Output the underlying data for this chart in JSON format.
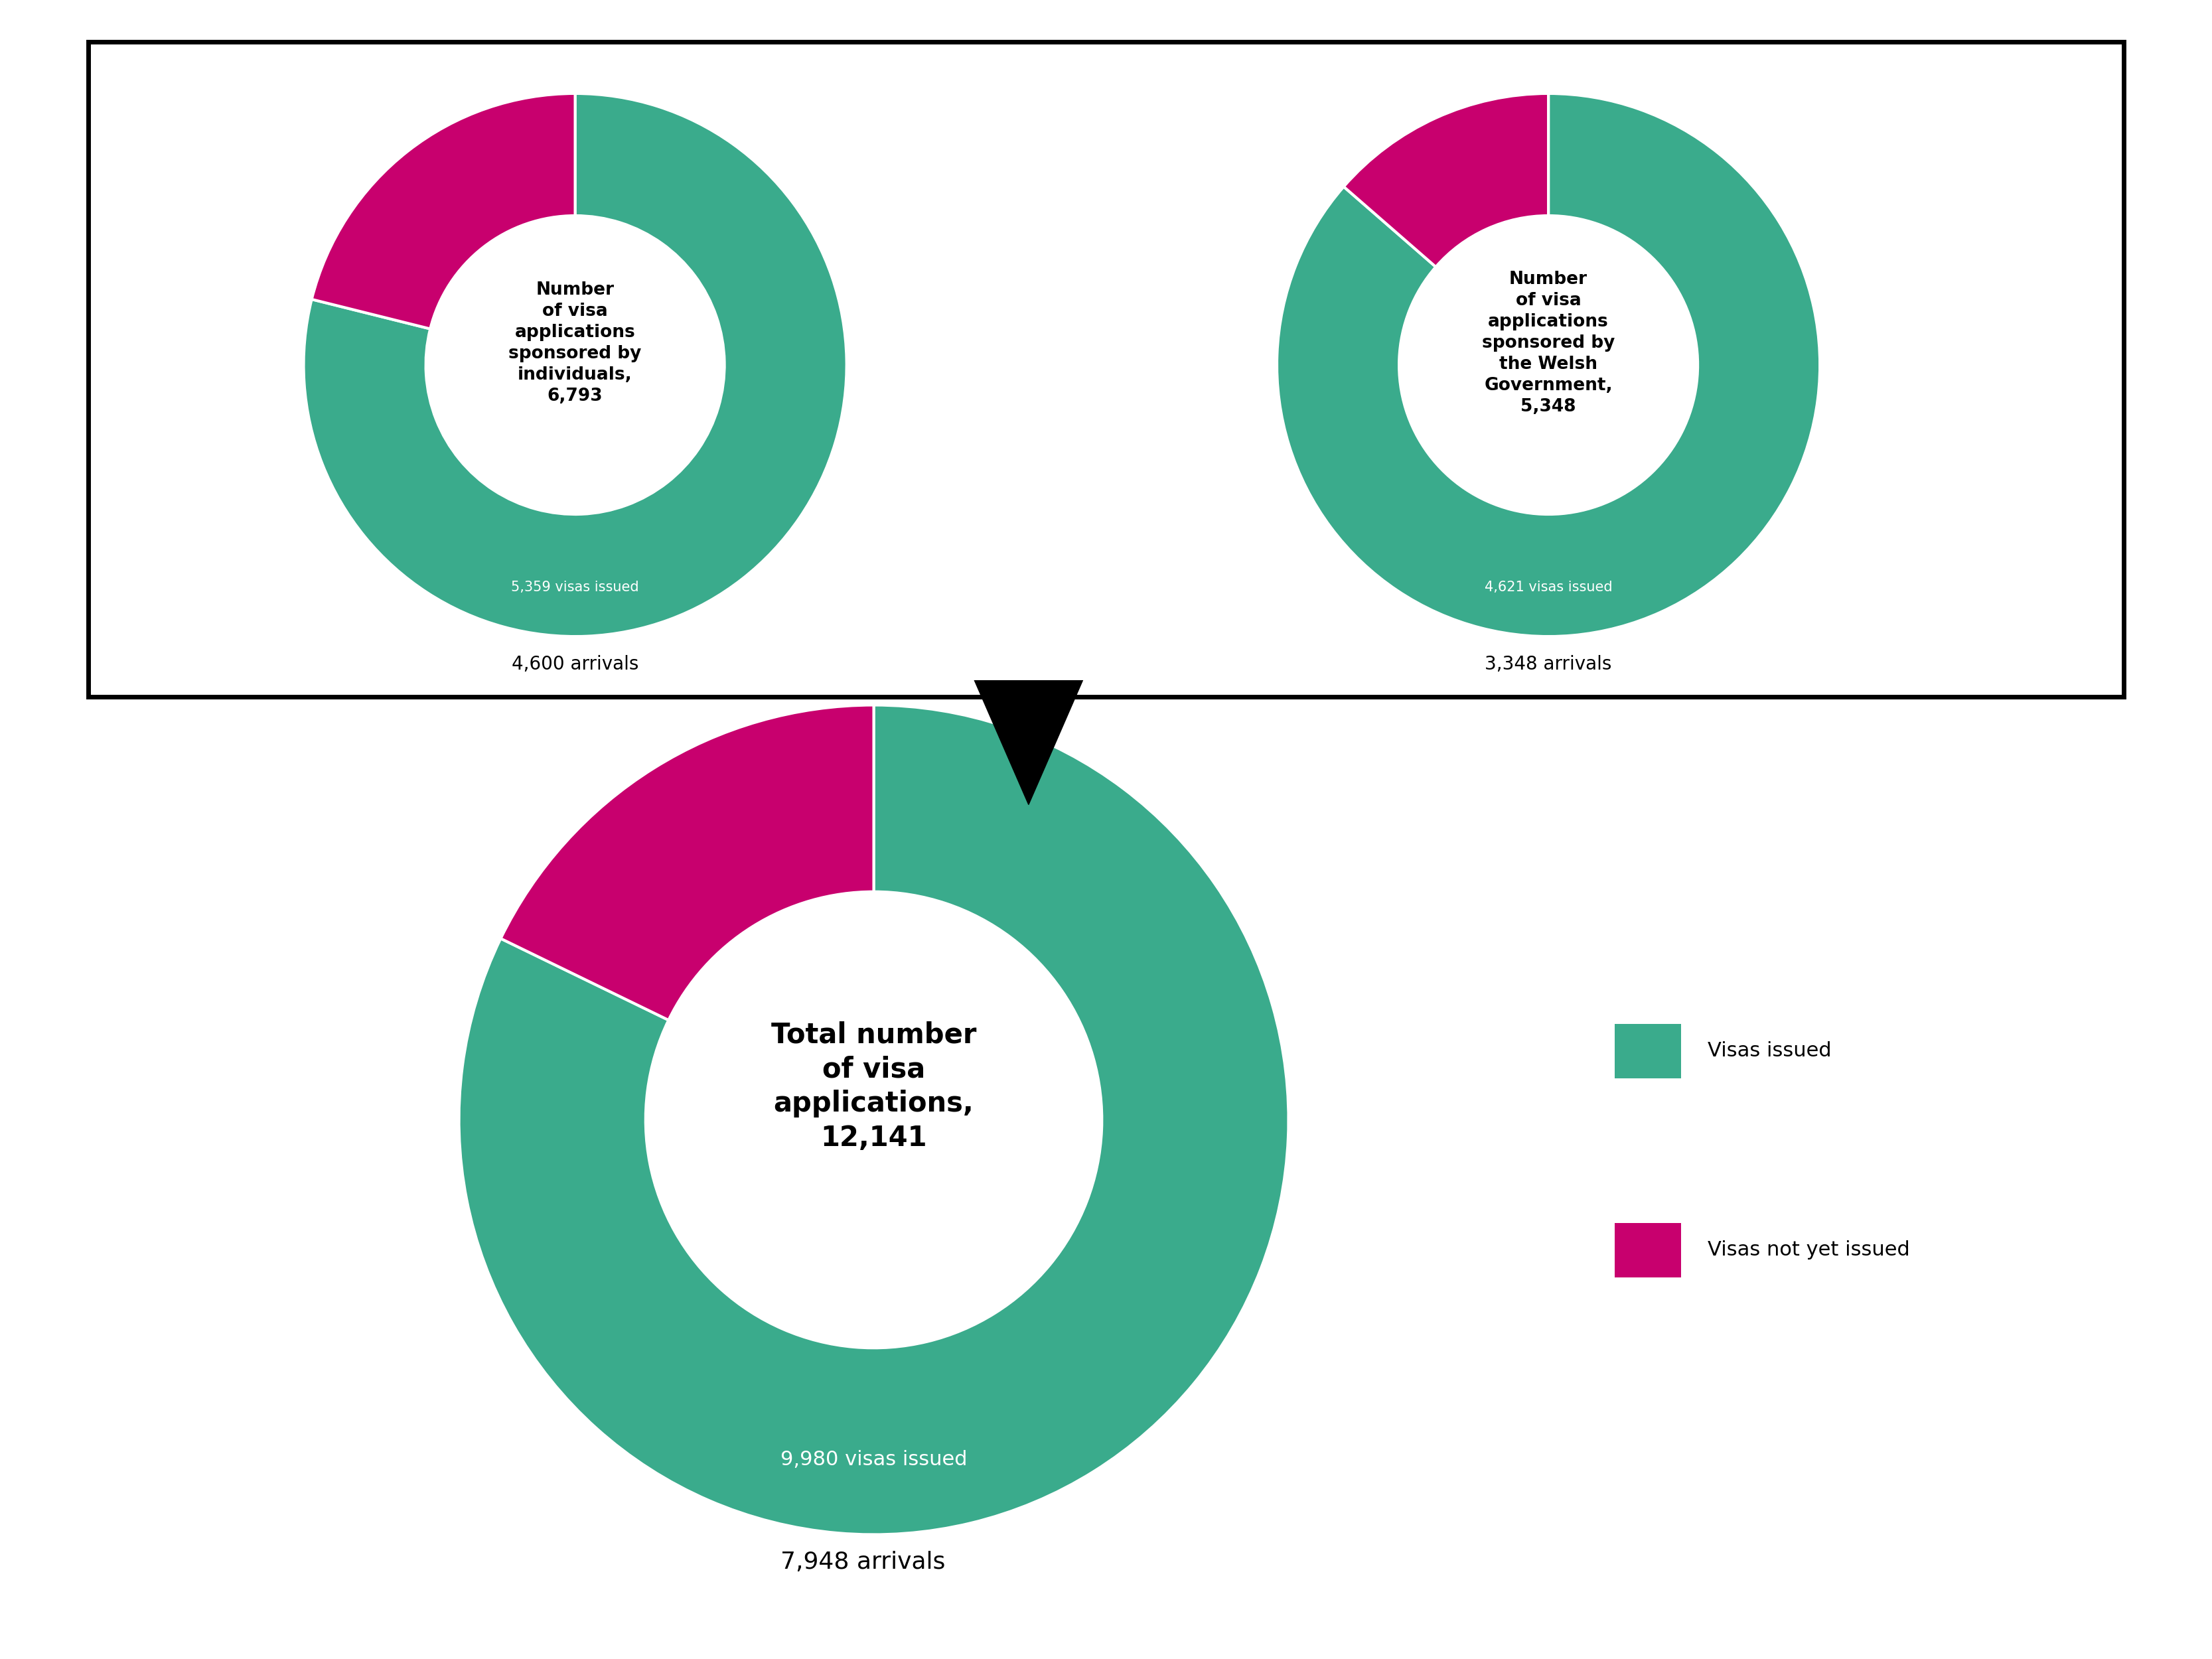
{
  "color_teal": "#3aab8c",
  "color_magenta": "#c8006e",
  "color_white": "#ffffff",
  "color_black": "#000000",
  "background_color": "#ffffff",
  "chart1_title": "Number\nof visa\napplications\nsponsored by\nindividuals,\n6,793",
  "chart1_visas_issued": 5359,
  "chart1_total": 6793,
  "chart1_visas_label": "5,359 visas issued",
  "chart1_arrivals_label": "4,600 arrivals",
  "chart2_title": "Number\nof visa\napplications\nsponsored by\nthe Welsh\nGovernment,\n5,348",
  "chart2_visas_issued": 4621,
  "chart2_total": 5348,
  "chart2_visas_label": "4,621 visas issued",
  "chart2_arrivals_label": "3,348 arrivals",
  "chart3_title": "Total number\nof visa\napplications,\n12,141",
  "chart3_visas_issued": 9980,
  "chart3_total": 12141,
  "chart3_visas_label": "9,980 visas issued",
  "chart3_arrivals_label": "7,948 arrivals",
  "legend_visas_issued": "Visas issued",
  "legend_visas_not": "Visas not yet issued"
}
